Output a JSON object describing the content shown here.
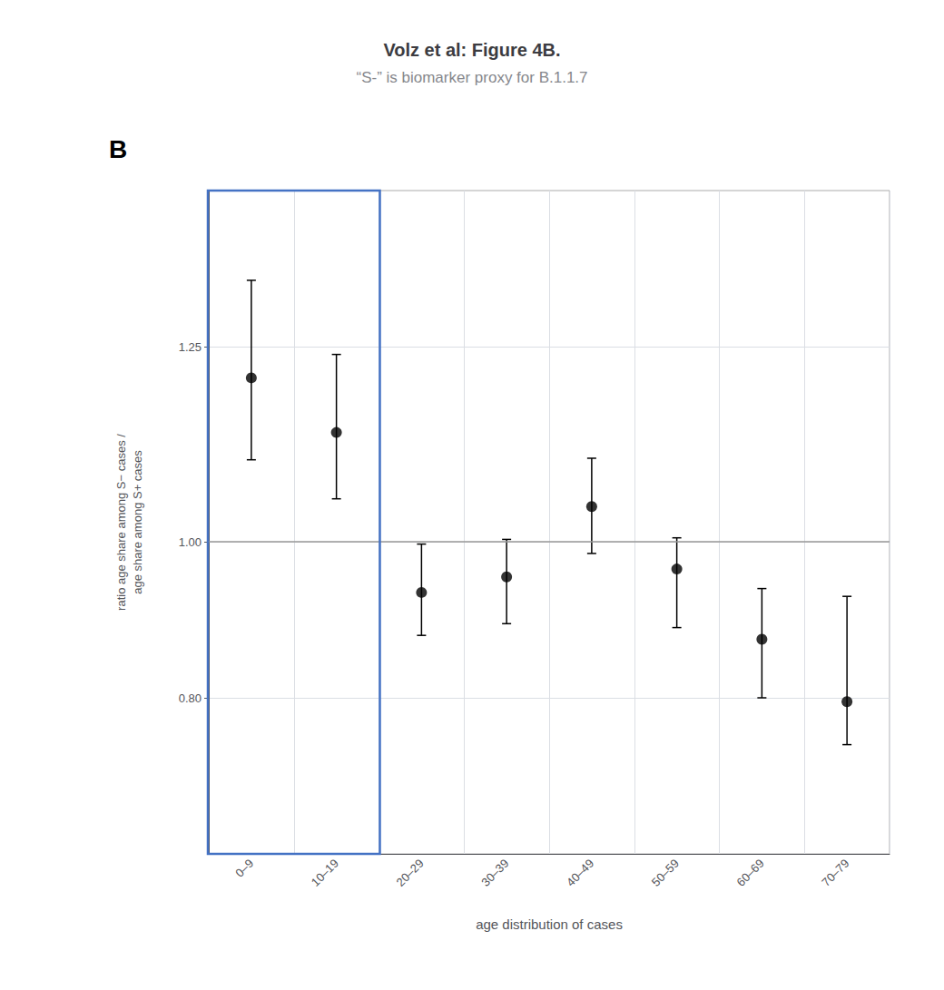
{
  "chart_data": {
    "type": "scatter",
    "title": "Volz et al: Figure 4B.",
    "subtitle": "“S-” is biomarker proxy for B.1.1.7",
    "annotations": [
      {
        "text": "B"
      }
    ],
    "categories": [
      "0–9",
      "10–19",
      "20–29",
      "30–39",
      "40–49",
      "50–59",
      "60–69",
      "70–79"
    ],
    "series": [
      {
        "values": [
          1.21,
          1.14,
          0.935,
          0.955,
          1.045,
          0.965,
          0.875,
          0.795
        ],
        "error_minus": [
          0.105,
          0.085,
          0.055,
          0.06,
          0.06,
          0.075,
          0.075,
          0.055
        ],
        "error_plus": [
          0.125,
          0.1,
          0.062,
          0.048,
          0.062,
          0.04,
          0.065,
          0.135
        ],
        "color": "black",
        "marker": "circle"
      }
    ],
    "x_label": "age distribution of cases",
    "y_label": "ratio age share among S− cases /\nage share among S+ cases",
    "ylim": [
      0.6,
      1.45
    ],
    "yticks": [
      {
        "value": 0.8,
        "label": "0.80"
      },
      {
        "value": 1.0,
        "label": "1.00"
      },
      {
        "value": 1.25,
        "label": "1.25"
      }
    ],
    "reference_line": {
      "y": 1.0,
      "color": "#999999"
    },
    "highlight": {
      "categories": [
        "0–9",
        "10–19"
      ],
      "color": "#4472C4"
    },
    "grid": true
  }
}
